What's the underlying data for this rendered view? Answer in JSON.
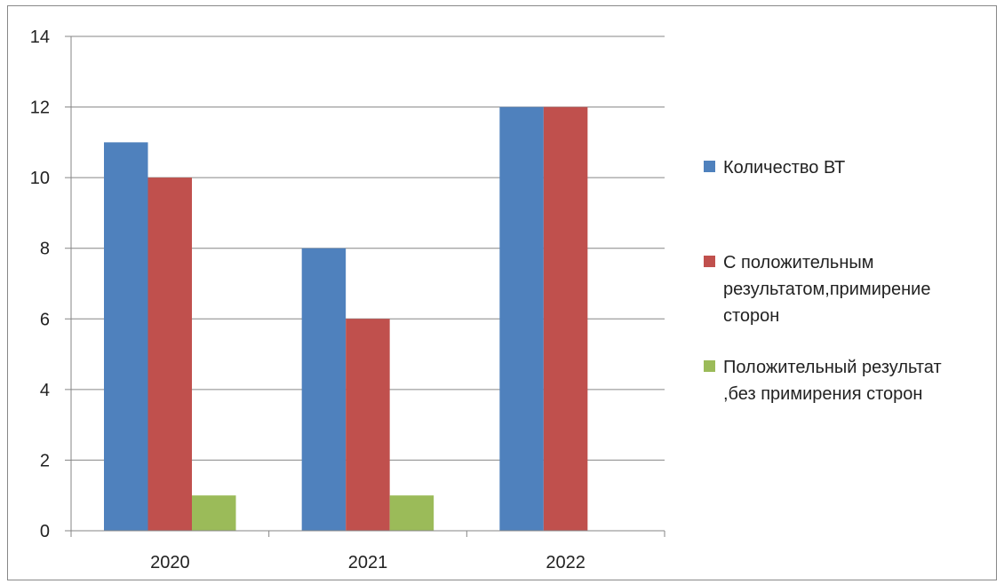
{
  "chart_data": {
    "type": "bar",
    "title": "",
    "xlabel": "",
    "ylabel": "",
    "categories": [
      "2020",
      "2021",
      "2022"
    ],
    "series": [
      {
        "name": "Количество ВТ",
        "values": [
          11,
          8,
          12
        ],
        "color": "#4f81bd"
      },
      {
        "name": "С положительным результатом,примирение сторон",
        "values": [
          10,
          6,
          12
        ],
        "color": "#c0504d"
      },
      {
        "name": "Положительный результат ,без примирения сторон",
        "values": [
          1,
          1,
          0
        ],
        "color": "#9bbb59"
      }
    ],
    "legend": {
      "position": "right",
      "entries": [
        {
          "lines": [
            "Количество ВТ"
          ]
        },
        {
          "lines": [
            "С положительным",
            "результатом,примирение",
            "сторон"
          ]
        },
        {
          "lines": [
            "Положительный результат",
            ",без примирения сторон"
          ]
        }
      ]
    },
    "yticks": [
      "0",
      "2",
      "4",
      "6",
      "8",
      "10",
      "12",
      "14"
    ],
    "ylim": [
      0,
      14
    ],
    "grid": true
  }
}
